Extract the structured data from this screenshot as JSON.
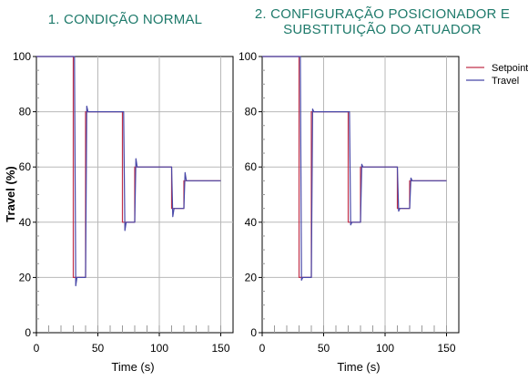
{
  "chart_data": [
    {
      "type": "line",
      "title": "1. CONDIÇÃO NORMAL",
      "xlabel": "Time (s)",
      "ylabel": "Travel (%)",
      "xlim": [
        0,
        160
      ],
      "ylim": [
        0,
        100
      ],
      "xticks": [
        0,
        50,
        100,
        150
      ],
      "yticks": [
        0,
        20,
        40,
        60,
        80,
        100
      ],
      "grid": true,
      "legend": "none",
      "series": [
        {
          "name": "Setpoint",
          "color": "#c0304a",
          "x": [
            0,
            30,
            30,
            40,
            40,
            70,
            70,
            80,
            80,
            110,
            110,
            120,
            120,
            150
          ],
          "y": [
            100,
            100,
            20,
            20,
            80,
            80,
            40,
            40,
            60,
            60,
            45,
            45,
            55,
            55
          ]
        },
        {
          "name": "Travel",
          "color": "#4848a8",
          "x": [
            0,
            31,
            32,
            33,
            35,
            40,
            41,
            42,
            44,
            71,
            72,
            73,
            75,
            80,
            81,
            82,
            84,
            110,
            111,
            112,
            114,
            120,
            121,
            122,
            124,
            150
          ],
          "y": [
            100,
            100,
            17,
            20,
            20,
            20,
            82,
            80,
            80,
            80,
            37,
            40,
            40,
            40,
            63,
            60,
            60,
            60,
            42,
            45,
            45,
            45,
            58,
            55,
            55,
            55
          ]
        }
      ]
    },
    {
      "type": "line",
      "title": "2. CONFIGURAÇÃO POSICIONADOR E SUBSTITUIÇÃO DO ATUADOR",
      "xlabel": "Time (s)",
      "ylabel": "",
      "xlim": [
        0,
        160
      ],
      "ylim": [
        0,
        100
      ],
      "xticks": [
        0,
        50,
        100,
        150
      ],
      "yticks": [
        0,
        20,
        40,
        60,
        80,
        100
      ],
      "grid": true,
      "legend": "top-right",
      "series": [
        {
          "name": "Setpoint",
          "color": "#c0304a",
          "x": [
            0,
            30,
            30,
            40,
            40,
            70,
            70,
            80,
            80,
            110,
            110,
            120,
            120,
            150
          ],
          "y": [
            100,
            100,
            20,
            20,
            80,
            80,
            40,
            40,
            60,
            60,
            45,
            45,
            55,
            55
          ]
        },
        {
          "name": "Travel",
          "color": "#4848a8",
          "x": [
            0,
            31,
            32,
            33,
            35,
            40,
            41,
            42,
            44,
            71,
            72,
            73,
            75,
            80,
            81,
            82,
            84,
            110,
            111,
            112,
            114,
            120,
            121,
            122,
            124,
            150
          ],
          "y": [
            100,
            100,
            19,
            20,
            20,
            20,
            81,
            80,
            80,
            80,
            39,
            40,
            40,
            40,
            61,
            60,
            60,
            60,
            44,
            45,
            45,
            45,
            56,
            55,
            55,
            55
          ]
        }
      ]
    }
  ]
}
